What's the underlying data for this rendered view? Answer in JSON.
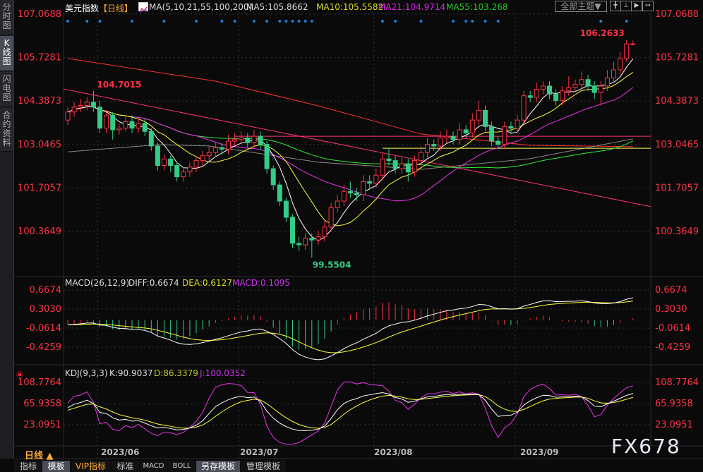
{
  "sidebar": {
    "tabs": [
      {
        "label": "分时图",
        "active": false
      },
      {
        "label": "K线图",
        "active": true
      },
      {
        "label": "闪电图",
        "active": false
      },
      {
        "label": "合约资料",
        "active": false
      }
    ]
  },
  "header": {
    "instrument": "美元指数",
    "period_tag": "【日线】",
    "ma_icon": "ma-chart-icon",
    "ma_params": "MA(5,10,21,55,100,200)",
    "ma5": "MA5:105.8662",
    "ma10": "MA10:105.5582",
    "ma21": "MA21:104.9714",
    "ma55": "MA55:103.268",
    "theme_select": "全部主题▼",
    "icon_buttons": [
      "crosshair-icon",
      "range-icon",
      "play-icon",
      "scroll-end-icon"
    ]
  },
  "colors": {
    "up": "#ff3344",
    "down": "#33cc88",
    "ma5": "#ffffff",
    "ma10": "#ffff33",
    "ma21": "#ee33ee",
    "ma55": "#33ee33",
    "ma100": "#888888",
    "ma200": "#ff3333",
    "trendline": "#ff3377",
    "axis_label": "#ff3344",
    "marker": "#1e7fd6"
  },
  "chart_data": [
    {
      "type": "candlestick",
      "title": "美元指数 【日线】",
      "y_axis_labels": [
        "107.0688",
        "105.7281",
        "104.3873",
        "103.0465",
        "101.7057",
        "100.3649"
      ],
      "ylim": [
        99.2,
        107.2
      ],
      "x_tick_labels": [
        "2023/06",
        "2023/07",
        "2023/08",
        "2023/09"
      ],
      "x_tick_candle_index": [
        5,
        27,
        48,
        70
      ],
      "annotations": {
        "high_label": "104.7015",
        "high_index": 4,
        "low_label": "99.5504",
        "low_index": 38,
        "recent_high_label": "106.2633",
        "recent_high_index": 87
      },
      "open": [
        103.8,
        104.05,
        104.2,
        104.25,
        104.35,
        104.2,
        103.55,
        103.95,
        103.5,
        103.55,
        103.75,
        103.55,
        103.7,
        103.45,
        103.0,
        102.4,
        102.6,
        102.4,
        102.05,
        102.2,
        102.35,
        102.55,
        102.7,
        102.8,
        102.95,
        102.9,
        103.15,
        103.2,
        103.25,
        103.1,
        103.3,
        103.05,
        102.3,
        101.8,
        101.3,
        100.8,
        100.0,
        99.95,
        100.15,
        100.1,
        100.2,
        100.5,
        101.1,
        101.3,
        101.6,
        101.55,
        101.5,
        101.9,
        101.85,
        102.1,
        102.6,
        102.55,
        102.3,
        102.45,
        102.2,
        102.55,
        102.8,
        103.05,
        103.0,
        103.25,
        103.3,
        103.2,
        103.5,
        103.4,
        103.8,
        104.1,
        103.6,
        103.15,
        103.05,
        103.6,
        103.55,
        103.8,
        104.55,
        104.5,
        104.75,
        104.85,
        104.6,
        104.4,
        104.7,
        104.8,
        104.9,
        105.05,
        104.85,
        104.65,
        104.85,
        105.1,
        105.35,
        105.7,
        106.15
      ],
      "high": [
        104.2,
        104.35,
        104.45,
        104.5,
        104.7015,
        104.4,
        104.1,
        104.05,
        103.7,
        103.9,
        103.95,
        103.85,
        103.85,
        103.55,
        103.1,
        102.75,
        102.7,
        102.5,
        102.35,
        102.5,
        102.7,
        102.85,
        103.0,
        103.1,
        103.1,
        103.35,
        103.4,
        103.45,
        103.4,
        103.5,
        103.45,
        103.15,
        102.4,
        101.9,
        101.4,
        100.9,
        100.2,
        100.3,
        100.3,
        100.4,
        100.7,
        101.25,
        101.5,
        101.8,
        101.9,
        101.7,
        102.1,
        102.1,
        102.3,
        102.8,
        102.95,
        102.7,
        102.65,
        102.6,
        102.7,
        103.0,
        103.25,
        103.2,
        103.45,
        103.5,
        103.45,
        103.7,
        103.65,
        104.0,
        104.4,
        104.25,
        103.75,
        103.3,
        103.75,
        103.75,
        103.95,
        104.7,
        104.7,
        104.95,
        105.0,
        105.0,
        104.75,
        104.85,
        105.15,
        105.05,
        105.3,
        105.2,
        105.0,
        105.0,
        105.35,
        105.6,
        105.9,
        106.2633,
        106.25
      ],
      "low": [
        103.65,
        103.9,
        104.05,
        104.1,
        104.05,
        103.4,
        103.4,
        103.2,
        103.35,
        103.45,
        103.4,
        103.4,
        103.3,
        102.85,
        102.25,
        102.25,
        102.2,
        101.9,
        101.9,
        102.05,
        102.2,
        102.4,
        102.55,
        102.65,
        102.75,
        102.75,
        103.0,
        103.05,
        102.95,
        102.95,
        102.9,
        102.15,
        101.65,
        101.15,
        100.65,
        99.85,
        99.75,
        99.8,
        99.5504,
        99.95,
        100.05,
        100.35,
        100.95,
        101.15,
        101.4,
        101.3,
        101.3,
        101.65,
        101.7,
        101.95,
        102.4,
        102.15,
        102.15,
        101.9,
        102.05,
        102.4,
        102.65,
        102.85,
        102.85,
        103.1,
        103.05,
        103.05,
        103.25,
        103.25,
        103.65,
        103.45,
        103.0,
        102.9,
        102.9,
        103.4,
        103.4,
        103.65,
        104.35,
        104.35,
        104.6,
        104.45,
        104.25,
        104.25,
        104.55,
        104.65,
        104.75,
        104.7,
        104.45,
        104.25,
        104.7,
        104.95,
        105.2,
        105.6,
        106.1
      ],
      "close": [
        104.05,
        104.2,
        104.25,
        104.35,
        104.2,
        103.55,
        103.95,
        103.5,
        103.55,
        103.75,
        103.55,
        103.7,
        103.45,
        103.0,
        102.4,
        102.6,
        102.4,
        102.05,
        102.2,
        102.35,
        102.55,
        102.7,
        102.8,
        102.95,
        102.9,
        103.15,
        103.2,
        103.25,
        103.1,
        103.3,
        103.05,
        102.3,
        101.8,
        101.3,
        100.8,
        100.0,
        99.95,
        100.15,
        100.1,
        100.2,
        100.5,
        101.1,
        101.3,
        101.6,
        101.55,
        101.5,
        101.9,
        101.85,
        102.1,
        102.6,
        102.55,
        102.3,
        102.45,
        102.2,
        102.55,
        102.8,
        103.05,
        103.0,
        103.25,
        103.3,
        103.2,
        103.5,
        103.4,
        103.8,
        104.1,
        103.6,
        103.15,
        103.05,
        103.6,
        103.55,
        103.8,
        104.55,
        104.5,
        104.75,
        104.85,
        104.6,
        104.4,
        104.7,
        104.8,
        104.9,
        105.05,
        104.85,
        104.65,
        104.85,
        105.1,
        105.35,
        105.7,
        106.15,
        106.15
      ],
      "ma100_points": [
        [
          0,
          102.82
        ],
        [
          14,
          103.04
        ],
        [
          22,
          103.0
        ],
        [
          39,
          102.5
        ],
        [
          55,
          102.28
        ],
        [
          72,
          102.61
        ],
        [
          88,
          103.22
        ]
      ],
      "ma200_points": [
        [
          0,
          105.7
        ],
        [
          23,
          105.0
        ],
        [
          39,
          104.24
        ],
        [
          55,
          103.37
        ],
        [
          72,
          103.02
        ],
        [
          88,
          102.98
        ]
      ],
      "drawings": {
        "trendline": [
          [
            0,
            104.76
          ],
          [
            91,
            101.13
          ]
        ],
        "hlines": [
          {
            "price": 103.3,
            "from_index": 26,
            "color": "#ff3377"
          },
          {
            "price": 102.93,
            "from_index": 49,
            "color": "#ffff66"
          }
        ]
      },
      "event_marker_candles": [
        0,
        3,
        5,
        10,
        15,
        20,
        24,
        26,
        29,
        31,
        33,
        34,
        35,
        36,
        37,
        38,
        49,
        51,
        55,
        60,
        62,
        63,
        65,
        67,
        83,
        87
      ]
    },
    {
      "type": "macd",
      "label": "MACD(26,12,9)",
      "diff": "DIFF:0.6674",
      "dea": "DEA:0.6127",
      "macd": "MACD:0.1095",
      "y_axis_labels": [
        "0.6674",
        "0.3030",
        "-0.0614",
        "-0.4259"
      ]
    },
    {
      "type": "kdj",
      "label": "KDJ(9,3,3)",
      "k": "K:90.9037",
      "d": "D:86.3379",
      "j": "J:100.0352",
      "y_axis_labels": [
        "108.7764",
        "65.9358",
        "23.0951"
      ]
    }
  ],
  "footer": {
    "period": "日线 ▲",
    "toolbar": [
      "指标",
      "模板",
      "VIP指标",
      "标准",
      "MACD",
      "BOLL",
      "另存模板",
      "管理模板"
    ],
    "watermark": "FX678"
  }
}
